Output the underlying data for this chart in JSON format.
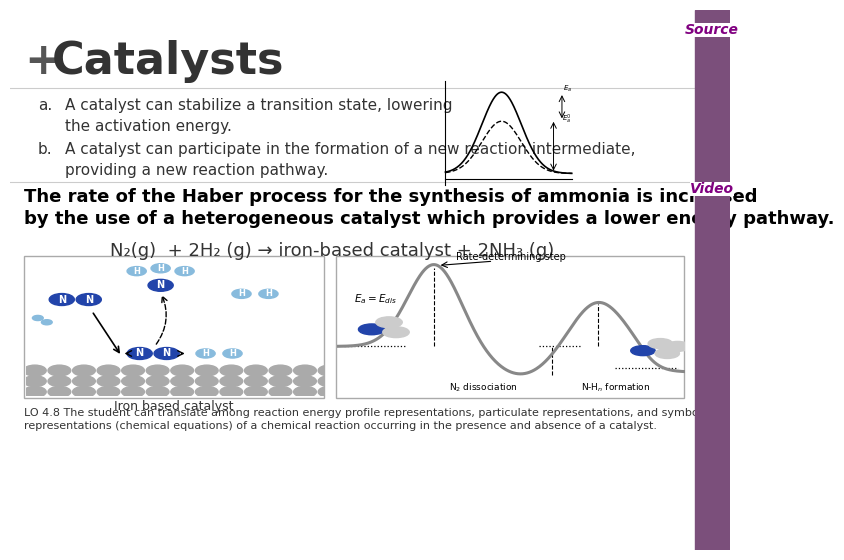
{
  "background_color": "#ffffff",
  "title_plus": "+",
  "title_text": "Catalysts",
  "title_color": "#333333",
  "title_fontsize": 32,
  "source_text": "Source",
  "source_color": "#800080",
  "video_text": "Video",
  "video_color": "#800080",
  "item_a_label": "a.",
  "item_a_text": "A catalyst can stabilize a transition state, lowering\nthe activation energy.",
  "item_b_label": "b.",
  "item_b_text": "A catalyst can participate in the formation of a new reaction intermediate,\nproviding a new reaction pathway.",
  "bold_text_line1": "The rate of the Haber process for the synthesis of ammonia is increased",
  "bold_text_line2": "by the use of a heterogeneous catalyst which provides a lower energy pathway.",
  "equation_text": "N₂(g)  + 2H₂ (g) → iron-based catalyst + 2NH₃ (g)",
  "iron_caption": "Iron based catalyst",
  "lo_text": "LO 4.8 The student can translate among reaction energy profile representations, particulate representations, and symbolic\nrepresentations (chemical equations) of a chemical reaction occurring in the presence and absence of a catalyst.",
  "text_color": "#333333",
  "bold_color": "#000000",
  "lo_fontsize": 8,
  "item_fontsize": 11,
  "bold_fontsize": 13,
  "eq_fontsize": 13,
  "sidebar_color": "#7b4f7b"
}
